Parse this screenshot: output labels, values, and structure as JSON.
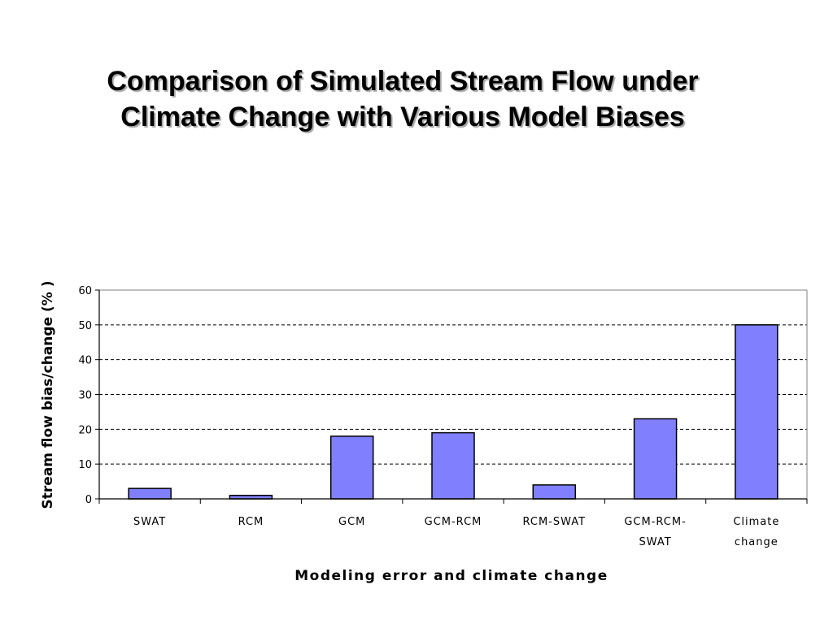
{
  "slide": {
    "title_lines": [
      "Comparison of Simulated Stream Flow under",
      "Climate Change with Various Model Biases"
    ]
  },
  "colors": {
    "bar_fill": "#8080ff",
    "bar_stroke": "#000000",
    "grid": "#000000",
    "axis": "#000000"
  },
  "chart_data": {
    "type": "bar",
    "title": "",
    "xlabel": "Modeling error and climate change",
    "ylabel": "Stream flow bias/change (% )",
    "ylim": [
      0,
      60
    ],
    "yticks": [
      0,
      10,
      20,
      30,
      40,
      50,
      60
    ],
    "grid": "dashed horizontal",
    "legend": "none",
    "categories": [
      [
        "SWAT"
      ],
      [
        "RCM"
      ],
      [
        "GCM"
      ],
      [
        "GCM-RCM"
      ],
      [
        "RCM-SWAT"
      ],
      [
        "GCM-RCM-",
        "SWAT"
      ],
      [
        "Climate",
        "change"
      ]
    ],
    "values": [
      3,
      1,
      18,
      19,
      4,
      23,
      50
    ]
  }
}
